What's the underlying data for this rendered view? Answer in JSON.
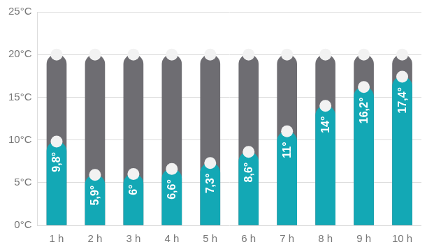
{
  "chart_data": {
    "type": "bar",
    "categories": [
      "1 h",
      "2 h",
      "3 h",
      "4 h",
      "5 h",
      "6 h",
      "7 h",
      "8 h",
      "9 h",
      "10 h"
    ],
    "series": [
      {
        "color": "#13a8b5",
        "values": [
          9.8,
          5.9,
          6,
          6.6,
          7.3,
          8.6,
          11,
          14,
          16.2,
          17.4
        ],
        "value_labels": [
          "9,8°",
          "5,9°",
          "6°",
          "6,6°",
          "7,3°",
          "8,6°",
          "11°",
          "14°",
          "16,2°",
          "17,4°"
        ]
      },
      {
        "color": "#6e6d72",
        "values": [
          20,
          20,
          20,
          20,
          20,
          20,
          20,
          20,
          20,
          20
        ]
      }
    ],
    "ylim": [
      0,
      25
    ],
    "yticks": [
      {
        "value": 0,
        "label": "0°C"
      },
      {
        "value": 5,
        "label": "5°C"
      },
      {
        "value": 10,
        "label": "10°C"
      },
      {
        "value": 15,
        "label": "15°C"
      },
      {
        "value": 20,
        "label": "20°C"
      },
      {
        "value": 25,
        "label": "25°C"
      }
    ],
    "grid": true,
    "data_labels": true
  }
}
